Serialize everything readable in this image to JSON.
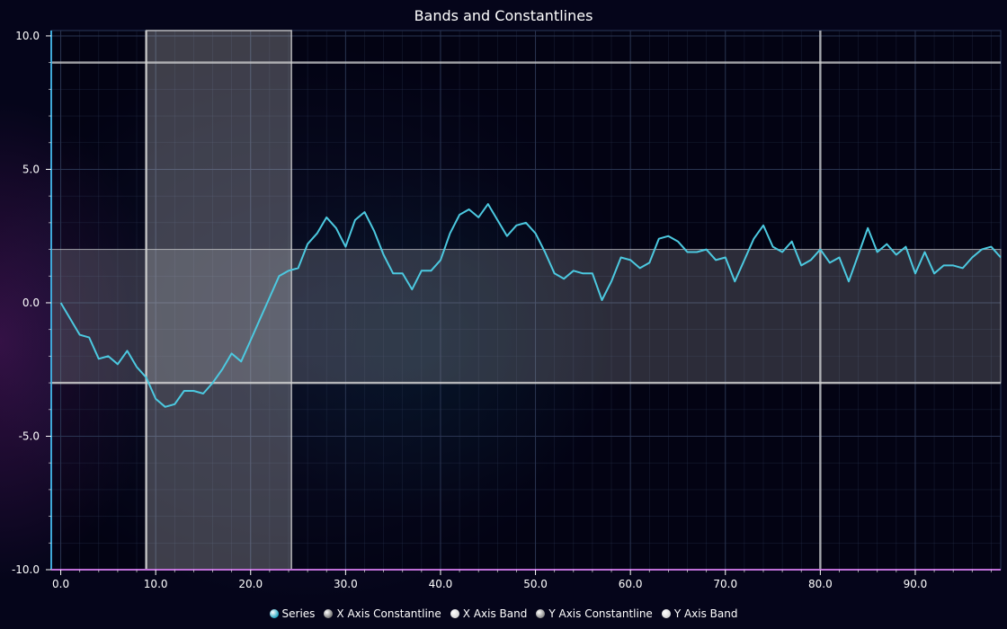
{
  "title": "Bands and Constantlines",
  "colors": {
    "series": "#4cc9e0",
    "x_constantline": "#888888",
    "x_band": "#d8d8d8",
    "y_constantline": "#777777",
    "y_band": "#d0d0d0",
    "grid": "#2a3552",
    "axis_y": "#3fa8d8",
    "axis_x": "#c070d8"
  },
  "legend": [
    {
      "label": "Series",
      "color": "#22a6c2"
    },
    {
      "label": "X Axis Constantline",
      "color": "#7a7a7a"
    },
    {
      "label": "X Axis Band",
      "color": "#d8d8d8"
    },
    {
      "label": "Y Axis Constantline",
      "color": "#8a8a8a"
    },
    {
      "label": "Y Axis Band",
      "color": "#d8d8d8"
    }
  ],
  "chart_data": {
    "type": "line",
    "title": "Bands and Constantlines",
    "xlabel": "",
    "ylabel": "",
    "xlim": [
      -1,
      99
    ],
    "ylim": [
      -10,
      10.2
    ],
    "x_ticks": [
      0,
      10,
      20,
      30,
      40,
      50,
      60,
      70,
      80,
      90
    ],
    "x_tick_labels": [
      "0.0",
      "10.0",
      "20.0",
      "30.0",
      "40.0",
      "50.0",
      "60.0",
      "70.0",
      "80.0",
      "90.0"
    ],
    "y_ticks": [
      10,
      5,
      0,
      -5,
      -10
    ],
    "y_tick_labels": [
      "10.0",
      "5.0",
      "0.0",
      "-5.0",
      "-10.0"
    ],
    "grid": true,
    "legend_position": "bottom",
    "x_axis_constantlines": [
      9.0,
      80.0
    ],
    "x_axis_band": [
      9.0,
      24.3
    ],
    "y_axis_constantlines": [
      9.0,
      -3.0
    ],
    "y_axis_band": [
      -3.0,
      2.0
    ],
    "series": [
      {
        "name": "Series",
        "x": [
          0,
          1,
          2,
          3,
          4,
          5,
          6,
          7,
          8,
          9,
          10,
          11,
          12,
          13,
          14,
          15,
          16,
          17,
          18,
          19,
          20,
          21,
          22,
          23,
          24,
          25,
          26,
          27,
          28,
          29,
          30,
          31,
          32,
          33,
          34,
          35,
          36,
          37,
          38,
          39,
          40,
          41,
          42,
          43,
          44,
          45,
          46,
          47,
          48,
          49,
          50,
          51,
          52,
          53,
          54,
          55,
          56,
          57,
          58,
          59,
          60,
          61,
          62,
          63,
          64,
          65,
          66,
          67,
          68,
          69,
          70,
          71,
          72,
          73,
          74,
          75,
          76,
          77,
          78,
          79,
          80,
          81,
          82,
          83,
          84,
          85,
          86,
          87,
          88,
          89,
          90,
          91,
          92,
          93,
          94,
          95,
          96,
          97,
          98,
          99
        ],
        "values": [
          0.0,
          -0.6,
          -1.2,
          -1.3,
          -2.1,
          -2.0,
          -2.3,
          -1.8,
          -2.4,
          -2.8,
          -3.6,
          -3.9,
          -3.8,
          -3.3,
          -3.3,
          -3.4,
          -3.0,
          -2.5,
          -1.9,
          -2.2,
          -1.4,
          -0.6,
          0.2,
          1.0,
          1.2,
          1.3,
          2.2,
          2.6,
          3.2,
          2.8,
          2.1,
          3.1,
          3.4,
          2.7,
          1.8,
          1.1,
          1.1,
          0.5,
          1.2,
          1.2,
          1.6,
          2.6,
          3.3,
          3.5,
          3.2,
          3.7,
          3.1,
          2.5,
          2.9,
          3.0,
          2.6,
          1.9,
          1.1,
          0.9,
          1.2,
          1.1,
          1.1,
          0.1,
          0.8,
          1.7,
          1.6,
          1.3,
          1.5,
          2.4,
          2.5,
          2.3,
          1.9,
          1.9,
          2.0,
          1.6,
          1.7,
          0.8,
          1.6,
          2.4,
          2.9,
          2.1,
          1.9,
          2.3,
          1.4,
          1.6,
          2.0,
          1.5,
          1.7,
          0.8,
          1.8,
          2.8,
          1.9,
          2.2,
          1.8,
          2.1,
          1.1,
          1.9,
          1.1,
          1.4,
          1.4,
          1.3,
          1.7,
          2.0,
          2.1,
          1.7
        ]
      }
    ]
  }
}
